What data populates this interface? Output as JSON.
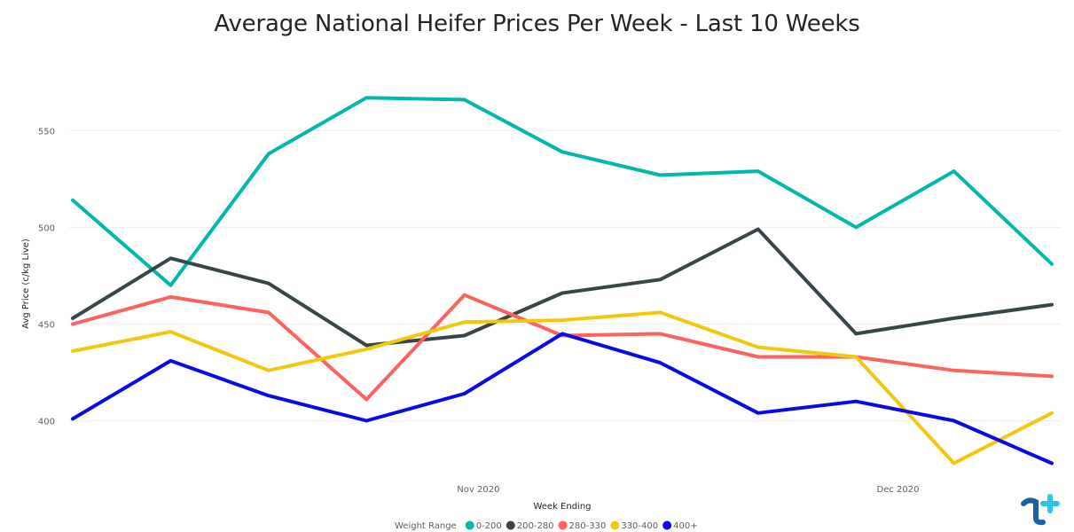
{
  "chart_data": {
    "type": "line",
    "title": "Average National Heifer Prices Per Week - Last 10 Weeks",
    "xlabel": "Week Ending",
    "ylabel": "Avg Price (c/kg Live)",
    "ylim": [
      370,
      590
    ],
    "yticks": [
      400,
      450,
      500,
      550
    ],
    "grid": true,
    "legend_title": "Weight Range",
    "legend_placement": "bottom-center",
    "x": [
      "2020-10-03",
      "2020-10-10",
      "2020-10-17",
      "2020-10-24",
      "2020-10-31",
      "2020-11-07",
      "2020-11-14",
      "2020-11-21",
      "2020-11-28",
      "2020-12-05",
      "2020-12-12"
    ],
    "xlim": [
      "2020-10-03",
      "2020-12-12"
    ],
    "xticks": [
      {
        "date": "2020-11-01",
        "label": "Nov 2020"
      },
      {
        "date": "2020-12-01",
        "label": "Dec 2020"
      }
    ],
    "series": [
      {
        "name": "0-200",
        "color": "#01B8AA",
        "values": [
          514,
          470,
          538,
          567,
          566,
          539,
          527,
          529,
          500,
          529,
          481
        ]
      },
      {
        "name": "200-280",
        "color": "#374649",
        "values": [
          453,
          484,
          471,
          439,
          444,
          466,
          473,
          499,
          445,
          453,
          460
        ]
      },
      {
        "name": "280-330",
        "color": "#FD625E",
        "values": [
          450,
          464,
          456,
          411,
          465,
          444,
          445,
          433,
          433,
          426,
          423
        ]
      },
      {
        "name": "330-400",
        "color": "#F2C80F",
        "values": [
          436,
          446,
          426,
          437,
          451,
          452,
          456,
          438,
          433,
          378,
          404
        ]
      },
      {
        "name": "400+",
        "color": "#0A0AE6",
        "values": [
          401,
          431,
          413,
          400,
          414,
          445,
          430,
          404,
          410,
          400,
          378
        ]
      }
    ]
  },
  "logo": {
    "icon": "brand-logo-icon",
    "colors": [
      "#1a5fa8",
      "#2ec4e8"
    ]
  }
}
